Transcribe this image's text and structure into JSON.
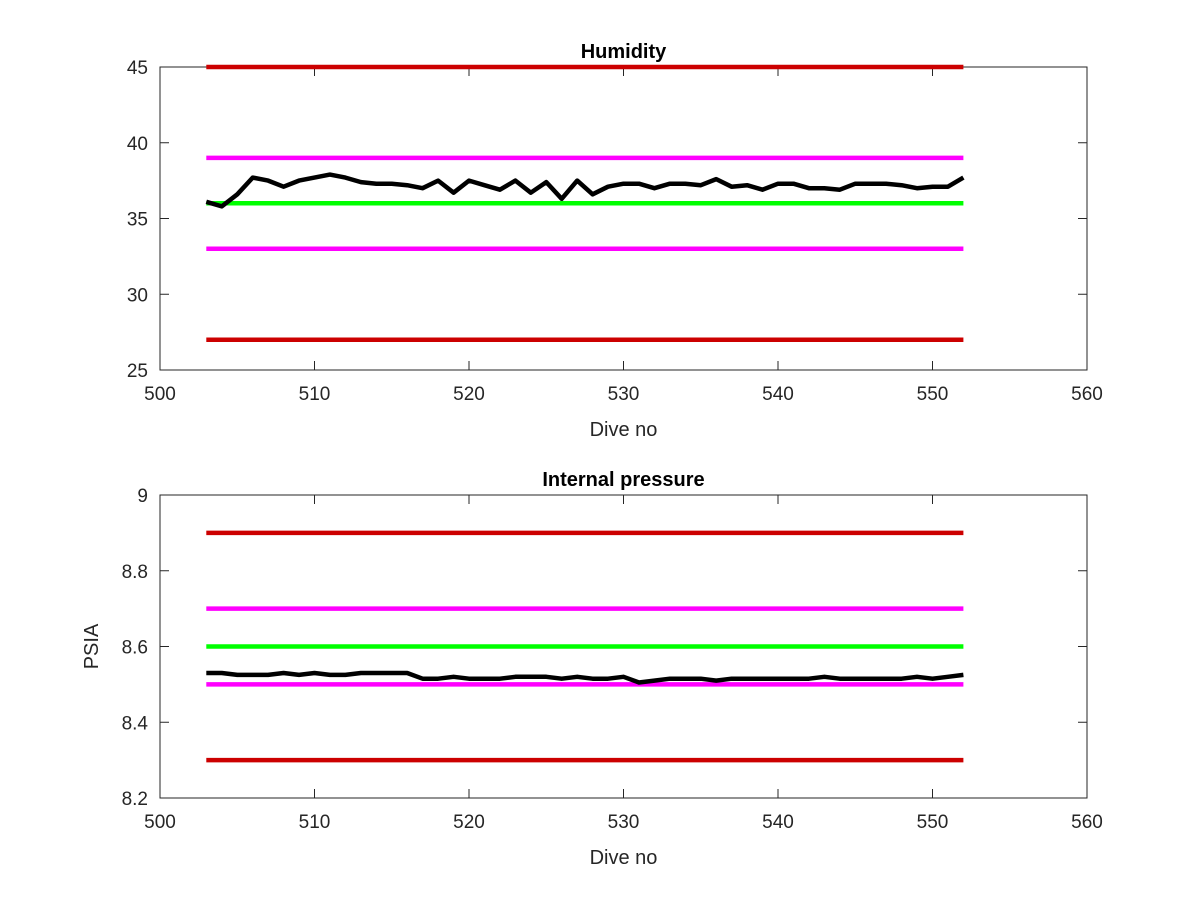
{
  "chart_data": [
    {
      "type": "line",
      "title": "Humidity",
      "xlabel": "Dive no",
      "ylabel": "",
      "xlim": [
        500,
        560
      ],
      "ylim": [
        25,
        45
      ],
      "xticks": [
        500,
        510,
        520,
        530,
        540,
        550,
        560
      ],
      "yticks": [
        25,
        30,
        35,
        40,
        45
      ],
      "grid": false,
      "series": [
        {
          "color": "#cc0000",
          "x": [
            503,
            552
          ],
          "y": [
            45,
            45
          ]
        },
        {
          "color": "#ff00ff",
          "x": [
            503,
            552
          ],
          "y": [
            39,
            39
          ]
        },
        {
          "color": "#00ff00",
          "x": [
            503,
            552
          ],
          "y": [
            36,
            36
          ]
        },
        {
          "color": "#ff00ff",
          "x": [
            503,
            552
          ],
          "y": [
            33,
            33
          ]
        },
        {
          "color": "#cc0000",
          "x": [
            503,
            552
          ],
          "y": [
            27,
            27
          ]
        },
        {
          "color": "#000000",
          "x": [
            503,
            504,
            505,
            506,
            507,
            508,
            509,
            510,
            511,
            512,
            513,
            514,
            515,
            516,
            517,
            518,
            519,
            520,
            521,
            522,
            523,
            524,
            525,
            526,
            527,
            528,
            529,
            530,
            531,
            532,
            533,
            534,
            535,
            536,
            537,
            538,
            539,
            540,
            541,
            542,
            543,
            544,
            545,
            546,
            547,
            548,
            549,
            550,
            551,
            552
          ],
          "y": [
            36.1,
            35.8,
            36.6,
            37.7,
            37.5,
            37.1,
            37.5,
            37.7,
            37.9,
            37.7,
            37.4,
            37.3,
            37.3,
            37.2,
            37.0,
            37.5,
            36.7,
            37.5,
            37.2,
            36.9,
            37.5,
            36.7,
            37.4,
            36.3,
            37.5,
            36.6,
            37.1,
            37.3,
            37.3,
            37.0,
            37.3,
            37.3,
            37.2,
            37.6,
            37.1,
            37.2,
            36.9,
            37.3,
            37.3,
            37.0,
            37.0,
            36.9,
            37.3,
            37.3,
            37.3,
            37.2,
            37.0,
            37.1,
            37.1,
            37.7
          ]
        }
      ]
    },
    {
      "type": "line",
      "title": "Internal pressure",
      "xlabel": "Dive no",
      "ylabel": "PSIA",
      "xlim": [
        500,
        560
      ],
      "ylim": [
        8.2,
        9
      ],
      "xticks": [
        500,
        510,
        520,
        530,
        540,
        550,
        560
      ],
      "yticks": [
        "8.2",
        "8.4",
        "8.6",
        "8.8",
        "9"
      ],
      "grid": false,
      "series": [
        {
          "color": "#cc0000",
          "x": [
            503,
            552
          ],
          "y": [
            8.9,
            8.9
          ]
        },
        {
          "color": "#ff00ff",
          "x": [
            503,
            552
          ],
          "y": [
            8.7,
            8.7
          ]
        },
        {
          "color": "#00ff00",
          "x": [
            503,
            552
          ],
          "y": [
            8.6,
            8.6
          ]
        },
        {
          "color": "#ff00ff",
          "x": [
            503,
            552
          ],
          "y": [
            8.5,
            8.5
          ]
        },
        {
          "color": "#cc0000",
          "x": [
            503,
            552
          ],
          "y": [
            8.3,
            8.3
          ]
        },
        {
          "color": "#000000",
          "x": [
            503,
            504,
            505,
            506,
            507,
            508,
            509,
            510,
            511,
            512,
            513,
            514,
            515,
            516,
            517,
            518,
            519,
            520,
            521,
            522,
            523,
            524,
            525,
            526,
            527,
            528,
            529,
            530,
            531,
            532,
            533,
            534,
            535,
            536,
            537,
            538,
            539,
            540,
            541,
            542,
            543,
            544,
            545,
            546,
            547,
            548,
            549,
            550,
            551,
            552
          ],
          "y": [
            8.53,
            8.53,
            8.525,
            8.525,
            8.525,
            8.53,
            8.525,
            8.53,
            8.525,
            8.525,
            8.53,
            8.53,
            8.53,
            8.53,
            8.515,
            8.515,
            8.52,
            8.515,
            8.515,
            8.515,
            8.52,
            8.52,
            8.52,
            8.515,
            8.52,
            8.515,
            8.515,
            8.52,
            8.505,
            8.51,
            8.515,
            8.515,
            8.515,
            8.51,
            8.515,
            8.515,
            8.515,
            8.515,
            8.515,
            8.515,
            8.52,
            8.515,
            8.515,
            8.515,
            8.515,
            8.515,
            8.52,
            8.515,
            8.52,
            8.525
          ]
        }
      ]
    }
  ]
}
